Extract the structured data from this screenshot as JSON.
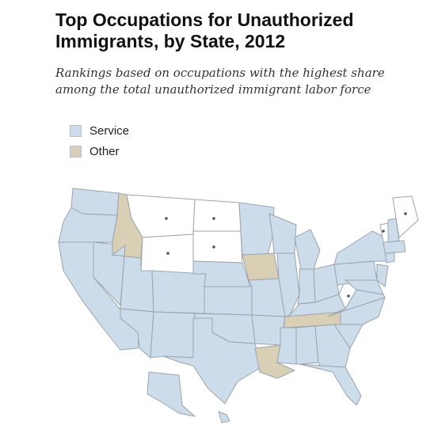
{
  "title": "Top Occupations for Unauthorized Immigrants, by State, 2012",
  "subtitle": "Rankings based on occupations with the highest share among the total unauthorized immigrant labor force",
  "legend": [
    {
      "label": "Service",
      "color": "#cddceb"
    },
    {
      "label": "Other",
      "color": "#d9cfb5"
    }
  ],
  "colors": {
    "service": "#cddceb",
    "other": "#d9cfb5",
    "no_data": "#ffffff",
    "border": "#9aa4ae"
  },
  "states_other": [
    "Idaho",
    "Iowa",
    "Tennessee",
    "Louisiana"
  ],
  "states_no_data": [
    "Montana",
    "Wyoming",
    "North Dakota",
    "South Dakota",
    "Vermont",
    "Maine",
    "West Virginia"
  ],
  "states_service": "all other states"
}
